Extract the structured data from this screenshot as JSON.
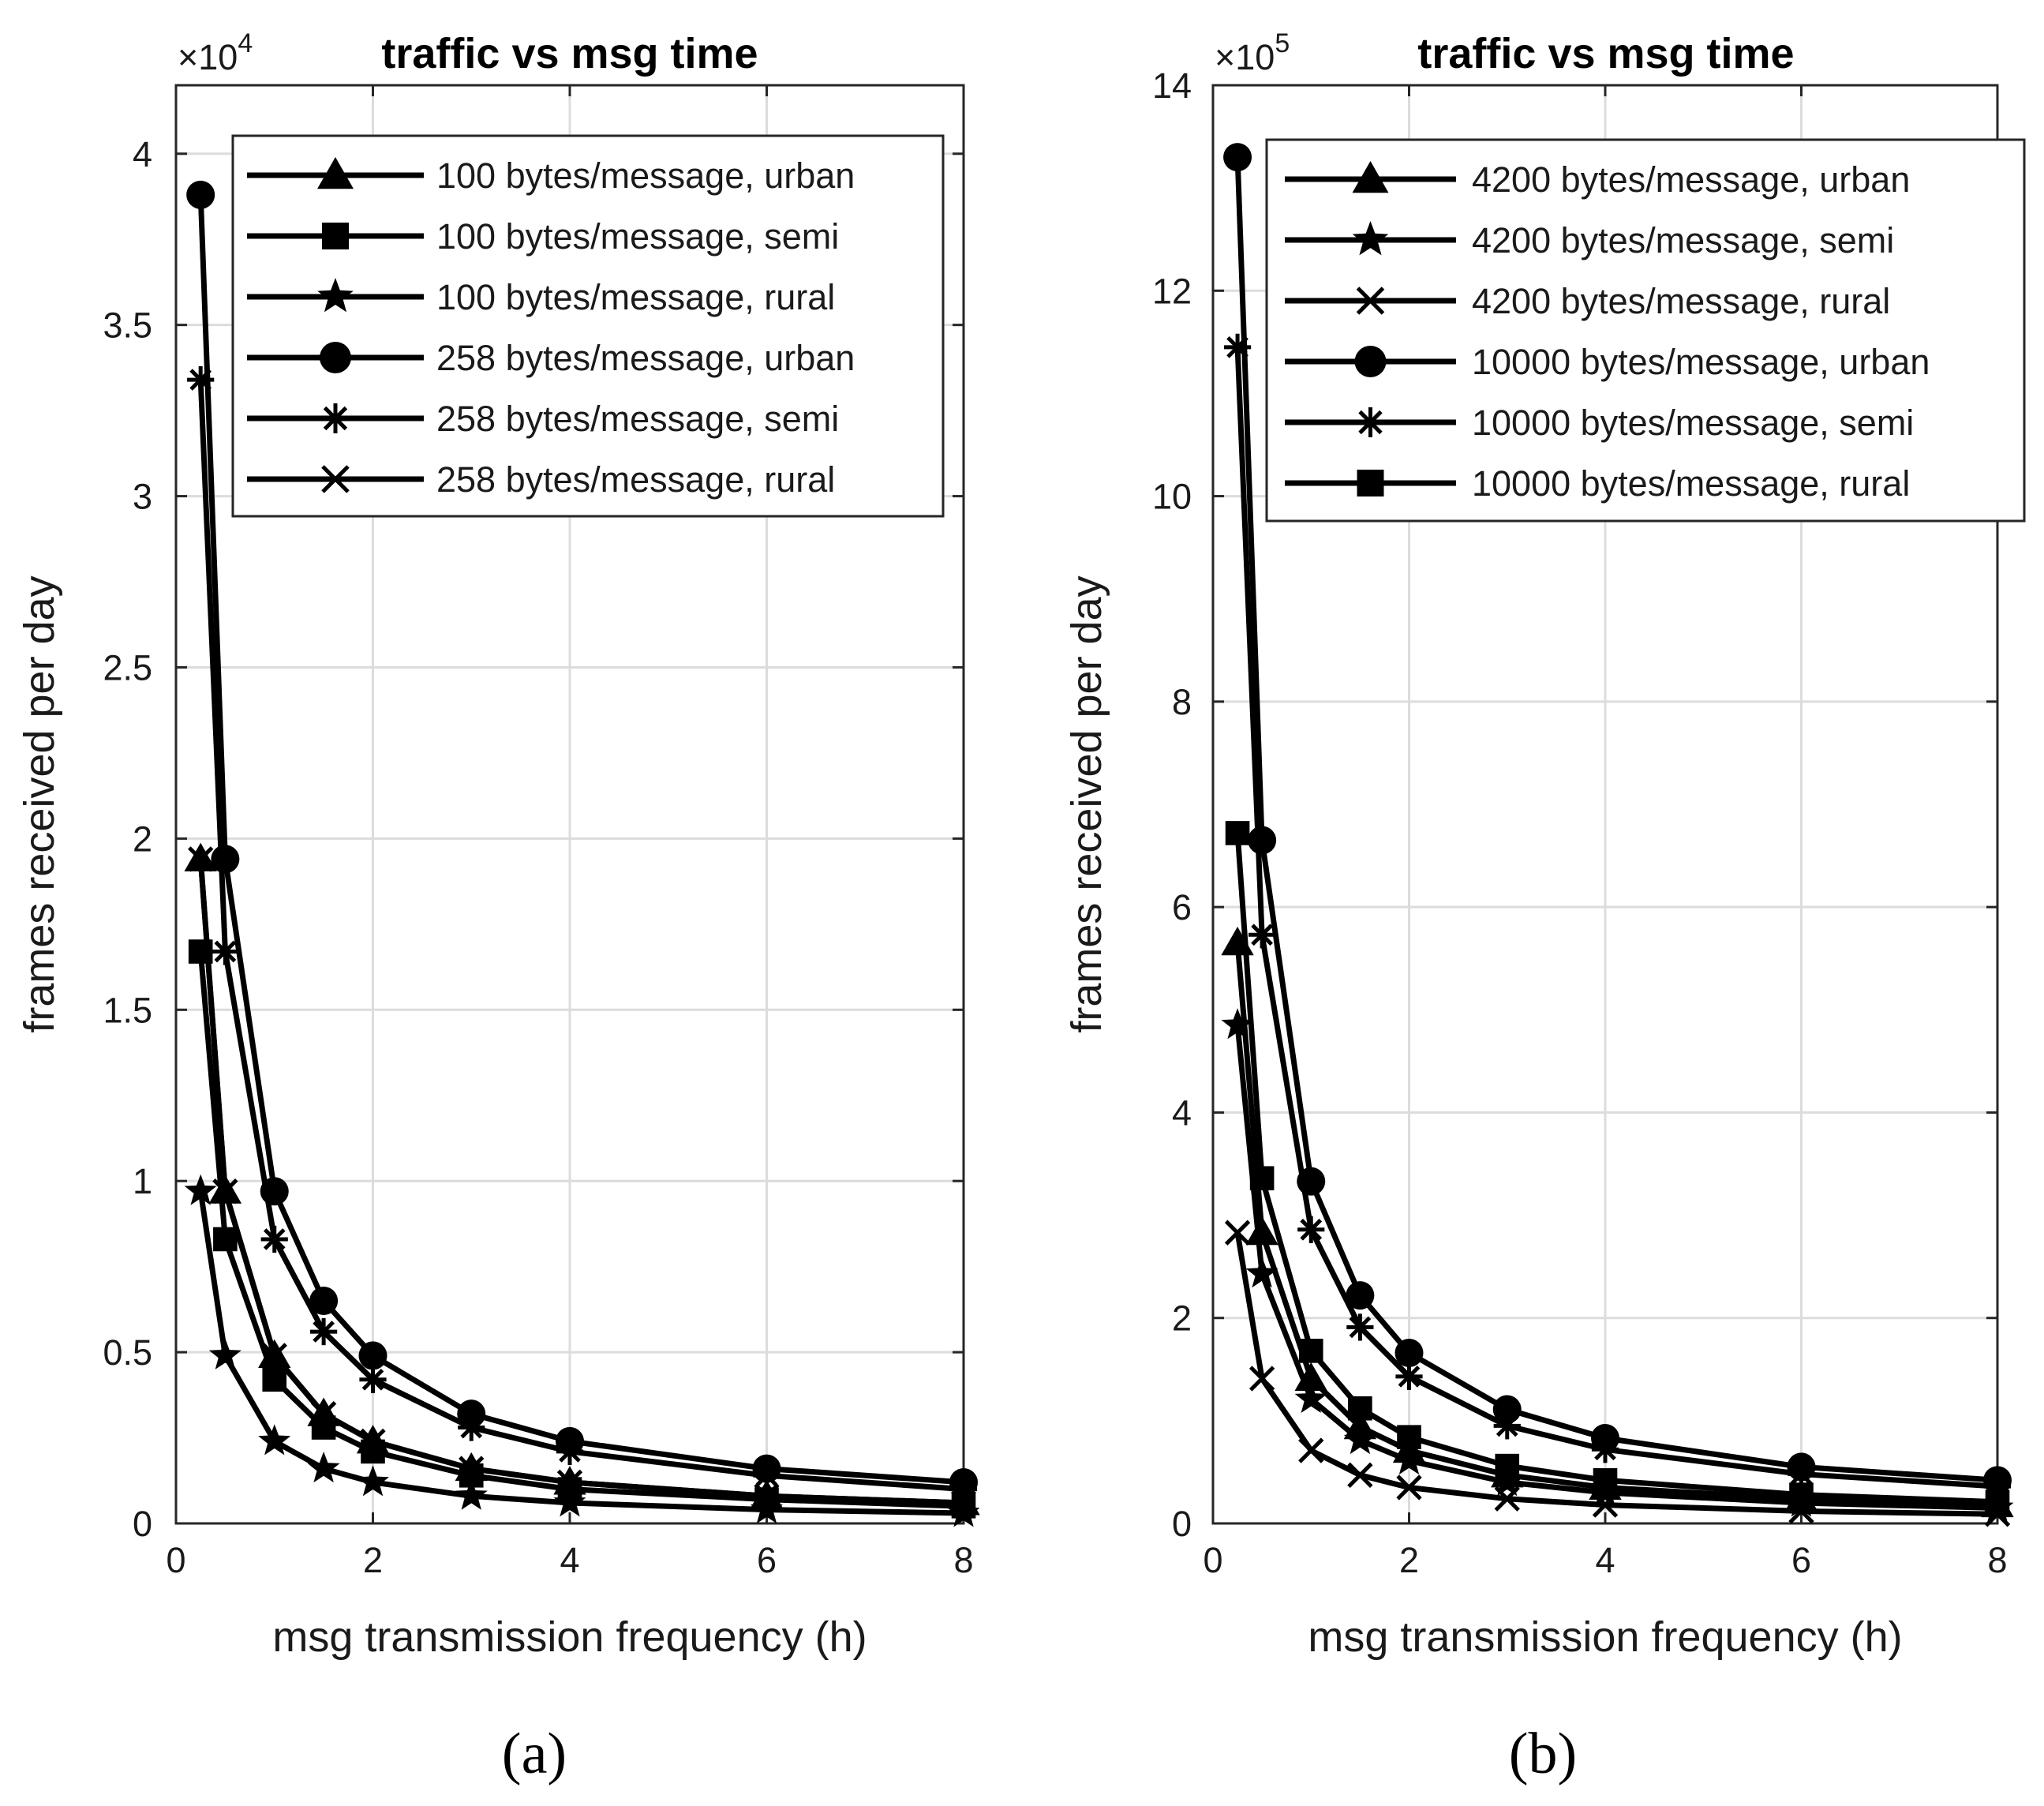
{
  "figure": {
    "captions": [
      "(a)",
      "(b)"
    ]
  },
  "chart_data": [
    {
      "type": "line",
      "title": "traffic vs msg time",
      "xlabel": "msg transmission frequency (h)",
      "ylabel": "frames received per day",
      "exponent_label": "×10",
      "exponent_power": "4",
      "xlim": [
        0,
        8
      ],
      "ylim": [
        0,
        4.2
      ],
      "xticks": [
        0,
        2,
        4,
        6,
        8
      ],
      "xtick_labels": [
        "0",
        "2",
        "4",
        "6",
        "8"
      ],
      "yticks": [
        0,
        0.5,
        1,
        1.5,
        2,
        2.5,
        3,
        3.5,
        4
      ],
      "ytick_labels": [
        "0",
        "0.5",
        "1",
        "1.5",
        "2",
        "2.5",
        "3",
        "3.5",
        "4"
      ],
      "grid": true,
      "legend_position": "top-right",
      "x": [
        0.25,
        0.5,
        1,
        1.5,
        2,
        3,
        4,
        6,
        8
      ],
      "series": [
        {
          "name": "100 bytes/message, urban",
          "marker": "triangle",
          "values": [
            1.94,
            0.97,
            0.49,
            0.32,
            0.24,
            0.16,
            0.12,
            0.08,
            0.06
          ]
        },
        {
          "name": "100 bytes/message, semi",
          "marker": "square",
          "values": [
            1.67,
            0.83,
            0.42,
            0.28,
            0.21,
            0.14,
            0.1,
            0.07,
            0.05
          ]
        },
        {
          "name": "100 bytes/message, rural",
          "marker": "star",
          "values": [
            0.97,
            0.49,
            0.24,
            0.16,
            0.12,
            0.08,
            0.06,
            0.04,
            0.03
          ]
        },
        {
          "name": "258 bytes/message, urban",
          "marker": "circle",
          "values": [
            3.88,
            1.94,
            0.97,
            0.65,
            0.49,
            0.32,
            0.24,
            0.16,
            0.12
          ]
        },
        {
          "name": "258 bytes/message, semi",
          "marker": "asterisk",
          "values": [
            3.34,
            1.67,
            0.83,
            0.56,
            0.42,
            0.28,
            0.21,
            0.14,
            0.1
          ]
        },
        {
          "name": "258 bytes/message, rural",
          "marker": "x",
          "values": [
            1.94,
            0.97,
            0.49,
            0.32,
            0.24,
            0.16,
            0.12,
            0.08,
            0.06
          ]
        }
      ]
    },
    {
      "type": "line",
      "title": "traffic vs msg time",
      "xlabel": "msg transmission frequency (h)",
      "ylabel": "frames received per day",
      "exponent_label": "×10",
      "exponent_power": "5",
      "xlim": [
        0,
        8
      ],
      "ylim": [
        0,
        14
      ],
      "xticks": [
        0,
        2,
        4,
        6,
        8
      ],
      "xtick_labels": [
        "0",
        "2",
        "4",
        "6",
        "8"
      ],
      "yticks": [
        0,
        2,
        4,
        6,
        8,
        10,
        12,
        14
      ],
      "ytick_labels": [
        "0",
        "2",
        "4",
        "6",
        "8",
        "10",
        "12",
        "14"
      ],
      "grid": true,
      "legend_position": "top-right",
      "x": [
        0.25,
        0.5,
        1,
        1.5,
        2,
        3,
        4,
        6,
        8
      ],
      "series": [
        {
          "name": "4200 bytes/message, urban",
          "marker": "triangle",
          "values": [
            5.65,
            2.83,
            1.41,
            0.94,
            0.71,
            0.47,
            0.35,
            0.24,
            0.18
          ]
        },
        {
          "name": "4200 bytes/message, semi",
          "marker": "star",
          "values": [
            4.85,
            2.43,
            1.21,
            0.81,
            0.61,
            0.4,
            0.3,
            0.2,
            0.15
          ]
        },
        {
          "name": "4200 bytes/message, rural",
          "marker": "x",
          "values": [
            2.83,
            1.41,
            0.71,
            0.47,
            0.35,
            0.24,
            0.18,
            0.12,
            0.09
          ]
        },
        {
          "name": "10000 bytes/message, urban",
          "marker": "circle",
          "values": [
            13.3,
            6.65,
            3.33,
            2.22,
            1.66,
            1.11,
            0.83,
            0.55,
            0.42
          ]
        },
        {
          "name": "10000 bytes/message, semi",
          "marker": "asterisk",
          "values": [
            11.45,
            5.73,
            2.86,
            1.91,
            1.43,
            0.95,
            0.72,
            0.48,
            0.36
          ]
        },
        {
          "name": "10000 bytes/message, rural",
          "marker": "square",
          "values": [
            6.72,
            3.36,
            1.68,
            1.12,
            0.84,
            0.56,
            0.42,
            0.28,
            0.21
          ]
        }
      ]
    }
  ]
}
